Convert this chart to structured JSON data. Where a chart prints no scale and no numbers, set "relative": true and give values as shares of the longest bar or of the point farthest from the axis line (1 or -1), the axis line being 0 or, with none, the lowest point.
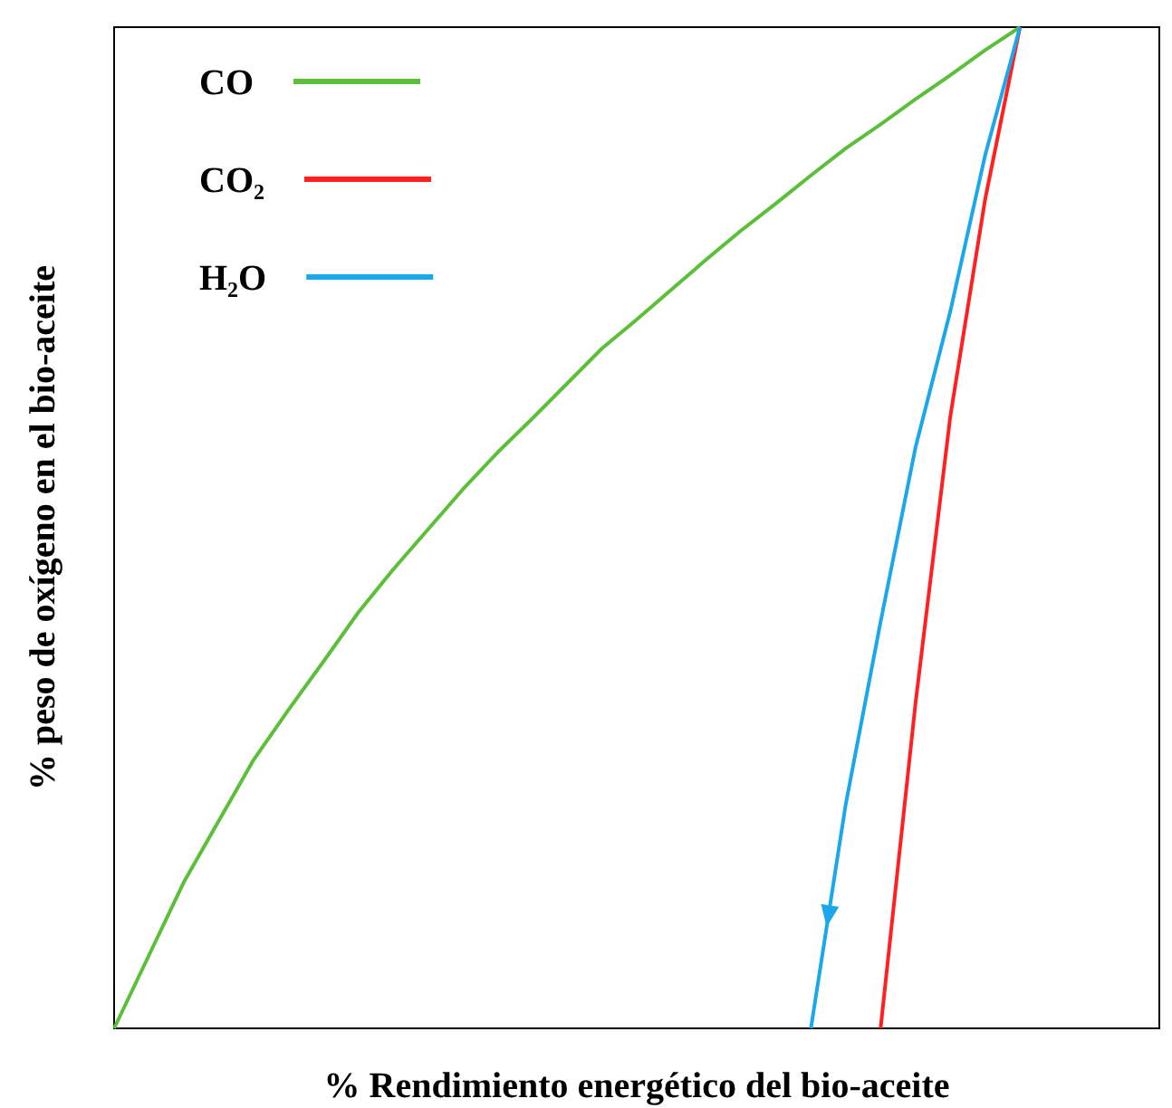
{
  "chart_data": {
    "type": "line",
    "relative": true,
    "xlabel": "% Rendimiento energético del bio-aceite",
    "ylabel": "% peso de oxígeno en el bio-aceite",
    "legend": "top left",
    "line_style": "solid",
    "categories": [
      null,
      null,
      null,
      null,
      null,
      null,
      null,
      null,
      null,
      null,
      null,
      null,
      null,
      null,
      null,
      null,
      null,
      null,
      null,
      null,
      null,
      null,
      null,
      null,
      null,
      null,
      null,
      null,
      null,
      null,
      null
    ],
    "series": [
      {
        "name": "CO",
        "color": "#5bbf3a",
        "values": [
          0,
          0.073,
          0.146,
          0.207,
          0.268,
          0.318,
          0.366,
          0.415,
          0.458,
          0.498,
          0.538,
          0.575,
          0.609,
          0.644,
          0.679,
          0.708,
          0.738,
          0.768,
          0.797,
          0.824,
          0.852,
          0.879,
          0.903,
          0.928,
          0.952,
          0.977,
          1,
          null,
          null,
          null,
          null
        ]
      },
      {
        "name": "CO₂",
        "color": "#ff2020",
        "values": [
          null,
          null,
          null,
          null,
          null,
          null,
          null,
          null,
          null,
          null,
          null,
          null,
          null,
          null,
          null,
          null,
          null,
          null,
          null,
          null,
          null,
          null,
          0,
          0.324,
          0.611,
          0.828,
          1,
          null,
          null,
          null,
          null
        ]
      },
      {
        "name": "H₂O",
        "color": "#1aa7ec",
        "values": [
          null,
          null,
          null,
          null,
          null,
          null,
          null,
          null,
          null,
          null,
          null,
          null,
          null,
          null,
          null,
          null,
          null,
          null,
          null,
          null,
          0,
          0.224,
          0.406,
          0.58,
          0.716,
          0.872,
          1,
          null,
          null,
          null,
          null
        ]
      }
    ]
  }
}
